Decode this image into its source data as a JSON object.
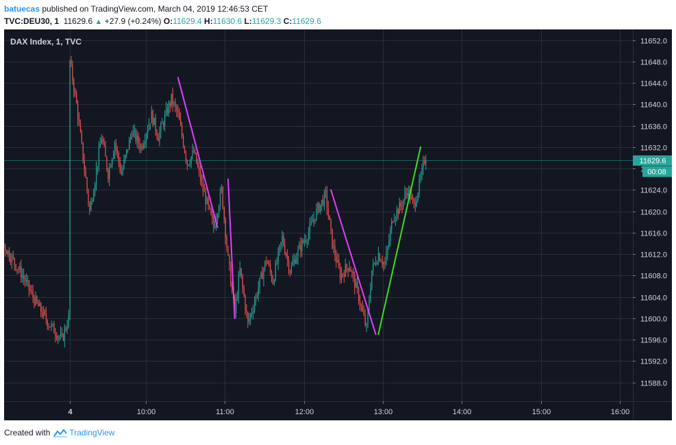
{
  "header": {
    "author": "batuecas",
    "published_text": "published on TradingView.com, March 04, 2019 12:46:53 CET",
    "symbol": "TVC:DEU30, 1",
    "last": "11629.6",
    "change": "+27.9 (+0.24%)",
    "o_label": "O:",
    "o_value": "11629.4",
    "h_label": "H:",
    "h_value": "11630.6",
    "l_label": "L:",
    "l_value": "11629.3",
    "c_label": "C:",
    "c_value": "11629.6"
  },
  "footer": {
    "created_with": "Created with",
    "brand": "TradingView"
  },
  "colors": {
    "background": "#131722",
    "grid": "#2a2e39",
    "up": "#26a69a",
    "down": "#ef5350",
    "magenta_line": "#e040fb",
    "green_line": "#3be01f",
    "price_tag": "#26a69a"
  },
  "chart_data": {
    "type": "candlestick",
    "title": "DAX Index, 1, TVC",
    "x_ticks": [
      "4",
      "10:00",
      "11:00",
      "12:00",
      "13:00",
      "14:00",
      "15:00",
      "16:00"
    ],
    "y_ticks": [
      "11652.0",
      "11648.0",
      "11644.0",
      "11640.0",
      "11636.0",
      "11632.0",
      "11628.0",
      "11624.0",
      "11620.0",
      "11616.0",
      "11612.0",
      "11608.0",
      "11604.0",
      "11600.0",
      "11596.0",
      "11592.0",
      "11588.0"
    ],
    "y_range": [
      11584.5,
      11654.0
    ],
    "last_price": "11629.6",
    "countdown": "00:08",
    "price_path": [
      {
        "t": "07:59",
        "p": 11590
      },
      {
        "t": "08:05",
        "p": 11607
      },
      {
        "t": "08:15",
        "p": 11611
      },
      {
        "t": "08:25",
        "p": 11605
      },
      {
        "t": "08:40",
        "p": 11614
      },
      {
        "t": "08:55",
        "p": 11608
      },
      {
        "t": "09:05",
        "p": 11603
      },
      {
        "t": "09:15",
        "p": 11599
      },
      {
        "t": "09:25",
        "p": 11596
      },
      {
        "t": "09:30",
        "p": 11600
      },
      {
        "t": "09:31",
        "p": 11648
      },
      {
        "t": "09:36",
        "p": 11640
      },
      {
        "t": "09:42",
        "p": 11628
      },
      {
        "t": "09:46",
        "p": 11620
      },
      {
        "t": "09:50",
        "p": 11626
      },
      {
        "t": "09:55",
        "p": 11634
      },
      {
        "t": "10:00",
        "p": 11627
      },
      {
        "t": "10:05",
        "p": 11633
      },
      {
        "t": "10:10",
        "p": 11627
      },
      {
        "t": "10:18",
        "p": 11635
      },
      {
        "t": "10:25",
        "p": 11632
      },
      {
        "t": "10:33",
        "p": 11638
      },
      {
        "t": "10:38",
        "p": 11634
      },
      {
        "t": "10:48",
        "p": 11641
      },
      {
        "t": "10:53",
        "p": 11638
      },
      {
        "t": "11:00",
        "p": 11629
      },
      {
        "t": "11:05",
        "p": 11631
      },
      {
        "t": "11:12",
        "p": 11624
      },
      {
        "t": "11:20",
        "p": 11617
      },
      {
        "t": "11:26",
        "p": 11624
      },
      {
        "t": "11:31",
        "p": 11611
      },
      {
        "t": "11:36",
        "p": 11601
      },
      {
        "t": "11:40",
        "p": 11609
      },
      {
        "t": "11:46",
        "p": 11599
      },
      {
        "t": "11:52",
        "p": 11604
      },
      {
        "t": "12:00",
        "p": 11611
      },
      {
        "t": "12:05",
        "p": 11607
      },
      {
        "t": "12:12",
        "p": 11615
      },
      {
        "t": "12:18",
        "p": 11609
      },
      {
        "t": "12:25",
        "p": 11613
      },
      {
        "t": "12:32",
        "p": 11616
      },
      {
        "t": "12:38",
        "p": 11620
      },
      {
        "t": "12:45",
        "p": 11623
      },
      {
        "t": "12:50",
        "p": 11614
      },
      {
        "t": "12:56",
        "p": 11608
      },
      {
        "t": "13:03",
        "p": 11610
      },
      {
        "t": "13:10",
        "p": 11604
      },
      {
        "t": "13:16",
        "p": 11598
      },
      {
        "t": "13:20",
        "p": 11609
      },
      {
        "t": "13:25",
        "p": 11612
      },
      {
        "t": "13:30",
        "p": 11610
      },
      {
        "t": "13:36",
        "p": 11619
      },
      {
        "t": "13:42",
        "p": 11621
      },
      {
        "t": "13:47",
        "p": 11624
      },
      {
        "t": "13:52",
        "p": 11621
      },
      {
        "t": "13:57",
        "p": 11626
      },
      {
        "t": "14:00",
        "p": 11629.6
      }
    ],
    "trendlines": [
      {
        "color": "magenta",
        "from": {
          "t": "10:52",
          "p": 11645
        },
        "to": {
          "t": "11:22",
          "p": 11617
        }
      },
      {
        "color": "magenta",
        "from": {
          "t": "11:30",
          "p": 11626
        },
        "to": {
          "t": "11:35",
          "p": 11600
        }
      },
      {
        "color": "magenta",
        "from": {
          "t": "12:48",
          "p": 11624
        },
        "to": {
          "t": "13:22",
          "p": 11597
        }
      },
      {
        "color": "green",
        "from": {
          "t": "13:24",
          "p": 11597
        },
        "to": {
          "t": "13:56",
          "p": 11632
        }
      }
    ]
  }
}
